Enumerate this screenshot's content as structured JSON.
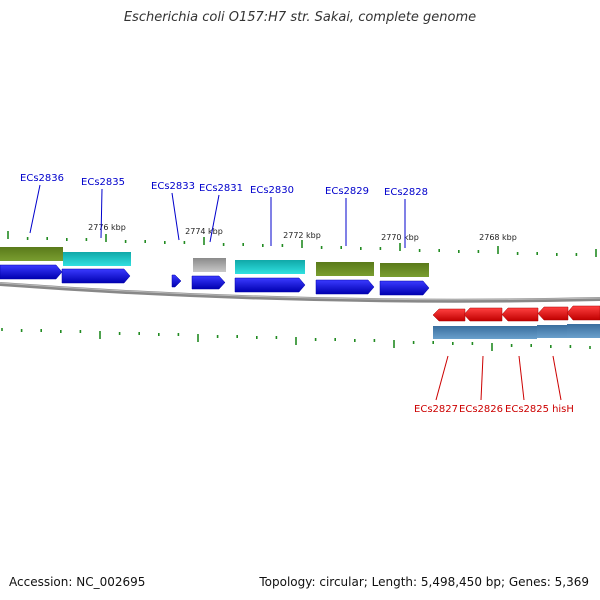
{
  "title": "Escherichia coli O157:H7 str. Sakai, complete genome",
  "footer": {
    "accession": "Accession: NC_002695",
    "topology": "Topology: circular; Length: 5,498,450 bp; Genes: 5,369"
  },
  "colors": {
    "forward_label": "#0000cc",
    "reverse_label": "#cc0000",
    "cds_forward": "#1a1aee",
    "cds_reverse": "#ee1111",
    "olive": "#6b8e23",
    "cyan": "#22cccc",
    "gray": "#aaaaaa",
    "steel": "#4682b4",
    "tick": "#228b22",
    "backbone": "#888888"
  },
  "scale_labels": [
    "2776 kbp",
    "2774 kbp",
    "2772 kbp",
    "2770 kbp",
    "2768 kbp"
  ],
  "forward_genes": [
    "ECs2836",
    "ECs2835",
    "ECs2833",
    "ECs2831",
    "ECs2830",
    "ECs2829",
    "ECs2828"
  ],
  "reverse_genes": [
    "ECs2827",
    "ECs2826",
    "ECs2825",
    "hisH"
  ]
}
